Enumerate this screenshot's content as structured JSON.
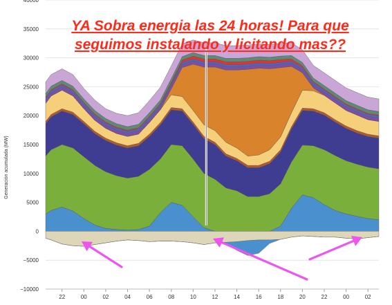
{
  "headline": {
    "line1": "YA Sobra energia las 24 horas! Para que",
    "line2": "seguimos instalando y licitando mas??",
    "color": "#ff2a1a"
  },
  "chart_data": {
    "type": "area",
    "stacked": true,
    "ylabel": "Generación acumulada (MW)",
    "ylim": [
      -10000,
      40000
    ],
    "yticks": [
      -10000,
      -5000,
      0,
      5000,
      10000,
      15000,
      20000,
      25000,
      30000,
      35000,
      40000
    ],
    "ytick_labels": [
      "−10000",
      "−5000",
      "0",
      "5000",
      "10000",
      "15000",
      "20000",
      "25000",
      "30000",
      "35000",
      "40000"
    ],
    "x_range_hours": [
      20.5,
      51.0
    ],
    "xtick_hours": [
      22,
      24,
      26,
      28,
      30,
      32,
      34,
      36,
      38,
      40,
      42,
      44,
      46,
      48,
      50
    ],
    "xtick_labels": [
      "22",
      "00",
      "02",
      "04",
      "06",
      "08",
      "10",
      "12",
      "14",
      "16",
      "18",
      "20",
      "22",
      "00",
      "02"
    ],
    "grid": true,
    "x": [
      20.5,
      21.0,
      22.0,
      23.0,
      24.0,
      25.0,
      26.0,
      27.0,
      28.0,
      29.0,
      30.0,
      31.0,
      32.0,
      33.0,
      34.0,
      35.0,
      36.0,
      37.0,
      38.0,
      39.0,
      40.0,
      41.0,
      42.0,
      43.0,
      44.0,
      45.0,
      46.0,
      47.0,
      48.0,
      49.0,
      50.0,
      51.0
    ],
    "series": [
      {
        "color": "#4a8fce",
        "values": [
          3000,
          3600,
          4200,
          3500,
          2200,
          1100,
          500,
          300,
          200,
          300,
          900,
          3200,
          5000,
          4500,
          2500,
          600,
          0,
          0,
          0,
          0,
          0,
          0,
          900,
          4000,
          6300,
          5800,
          4600,
          3600,
          3000,
          2600,
          2200,
          2000
        ]
      },
      {
        "color": "#7aaf3c",
        "values": [
          10000,
          10500,
          10800,
          10900,
          10700,
          10300,
          9800,
          9300,
          9000,
          9200,
          9800,
          9300,
          10000,
          10300,
          10000,
          9400,
          9000,
          7500,
          7000,
          6000,
          6000,
          6500,
          7300,
          8000,
          8600,
          9000,
          9500,
          9500,
          9200,
          9000,
          8900,
          8800
        ]
      },
      {
        "color": "#3f3d91",
        "values": [
          5600,
          5700,
          5800,
          5800,
          5700,
          5500,
          5400,
          5300,
          5200,
          5300,
          5700,
          5900,
          6000,
          6000,
          6000,
          6000,
          6000,
          5500,
          5200,
          5000,
          5000,
          5200,
          5500,
          5700,
          6000,
          6000,
          6000,
          5800,
          5600,
          5400,
          5300,
          5300
        ]
      },
      {
        "color": "#b35a2c",
        "values": [
          400,
          400,
          400,
          400,
          400,
          400,
          400,
          400,
          400,
          400,
          400,
          400,
          400,
          400,
          400,
          400,
          400,
          400,
          400,
          400,
          400,
          400,
          400,
          400,
          400,
          400,
          400,
          400,
          400,
          400,
          400,
          400
        ]
      },
      {
        "color": "#f6cf7a",
        "values": [
          3100,
          3200,
          3200,
          2800,
          2200,
          1900,
          1700,
          1600,
          1600,
          1600,
          2000,
          2200,
          2200,
          2100,
          2000,
          2000,
          2000,
          2000,
          1800,
          1600,
          1800,
          2000,
          2200,
          2400,
          3100,
          3100,
          3000,
          2900,
          2700,
          2700,
          2500,
          2500
        ]
      },
      {
        "color": "#d9832c",
        "values": [
          0,
          0,
          0,
          0,
          0,
          0,
          0,
          0,
          0,
          0,
          0,
          0,
          1000,
          5000,
          8000,
          10000,
          11000,
          12500,
          13500,
          15000,
          15000,
          14000,
          12000,
          8000,
          3000,
          500,
          0,
          0,
          0,
          0,
          0,
          0
        ]
      },
      {
        "color": "#7d4fa3",
        "values": [
          600,
          600,
          600,
          600,
          600,
          600,
          600,
          600,
          600,
          600,
          600,
          600,
          600,
          600,
          600,
          600,
          600,
          600,
          600,
          600,
          600,
          600,
          600,
          600,
          600,
          600,
          600,
          600,
          600,
          600,
          600,
          600
        ]
      },
      {
        "color": "#3b6fd8",
        "values": [
          300,
          300,
          300,
          300,
          300,
          300,
          300,
          300,
          300,
          300,
          300,
          300,
          300,
          300,
          300,
          300,
          300,
          300,
          300,
          300,
          300,
          300,
          300,
          300,
          300,
          300,
          300,
          300,
          300,
          300,
          300,
          300
        ]
      },
      {
        "color": "#e0342c",
        "values": [
          200,
          200,
          200,
          200,
          200,
          200,
          200,
          200,
          200,
          200,
          200,
          200,
          300,
          400,
          500,
          500,
          500,
          500,
          500,
          500,
          500,
          500,
          500,
          400,
          300,
          200,
          200,
          200,
          200,
          200,
          200,
          200
        ]
      },
      {
        "color": "#5e8a78",
        "values": [
          600,
          600,
          600,
          600,
          600,
          600,
          600,
          600,
          600,
          600,
          600,
          600,
          600,
          600,
          600,
          600,
          600,
          600,
          600,
          600,
          600,
          600,
          600,
          600,
          600,
          600,
          600,
          600,
          600,
          600,
          600,
          600
        ]
      },
      {
        "color": "#c9a6d6",
        "values": [
          2000,
          2000,
          2000,
          2000,
          1800,
          1800,
          1700,
          1800,
          1900,
          2000,
          2100,
          2200,
          2200,
          2200,
          2200,
          2200,
          2200,
          2200,
          2200,
          2200,
          2200,
          2200,
          2200,
          2200,
          2200,
          2200,
          2200,
          2200,
          2200,
          2200,
          2200,
          2200
        ]
      }
    ],
    "negative_series": [
      {
        "color": "#ded6b8",
        "values": [
          -1200,
          -1500,
          -2200,
          -2500,
          -2600,
          -2300,
          -2000,
          -1700,
          -1500,
          -1600,
          -1800,
          -1700,
          -1700,
          -1800,
          -2000,
          -2300,
          -2000,
          -1900,
          -1800,
          -1600,
          -1500,
          -1500,
          -1400,
          -1000,
          -800,
          -900,
          -1000,
          -1000,
          -1200,
          -1300,
          -1100,
          -900
        ]
      },
      {
        "color": "#4a8fce",
        "values": [
          0,
          0,
          0,
          0,
          0,
          0,
          0,
          0,
          0,
          0,
          0,
          0,
          0,
          0,
          0,
          0,
          0,
          -300,
          -1500,
          -2600,
          -2300,
          -600,
          0,
          0,
          0,
          0,
          0,
          0,
          0,
          0,
          0,
          0
        ]
      }
    ],
    "dip": {
      "hour": 35.2,
      "total": 1000
    }
  },
  "arrow_color": "#ee55ee"
}
